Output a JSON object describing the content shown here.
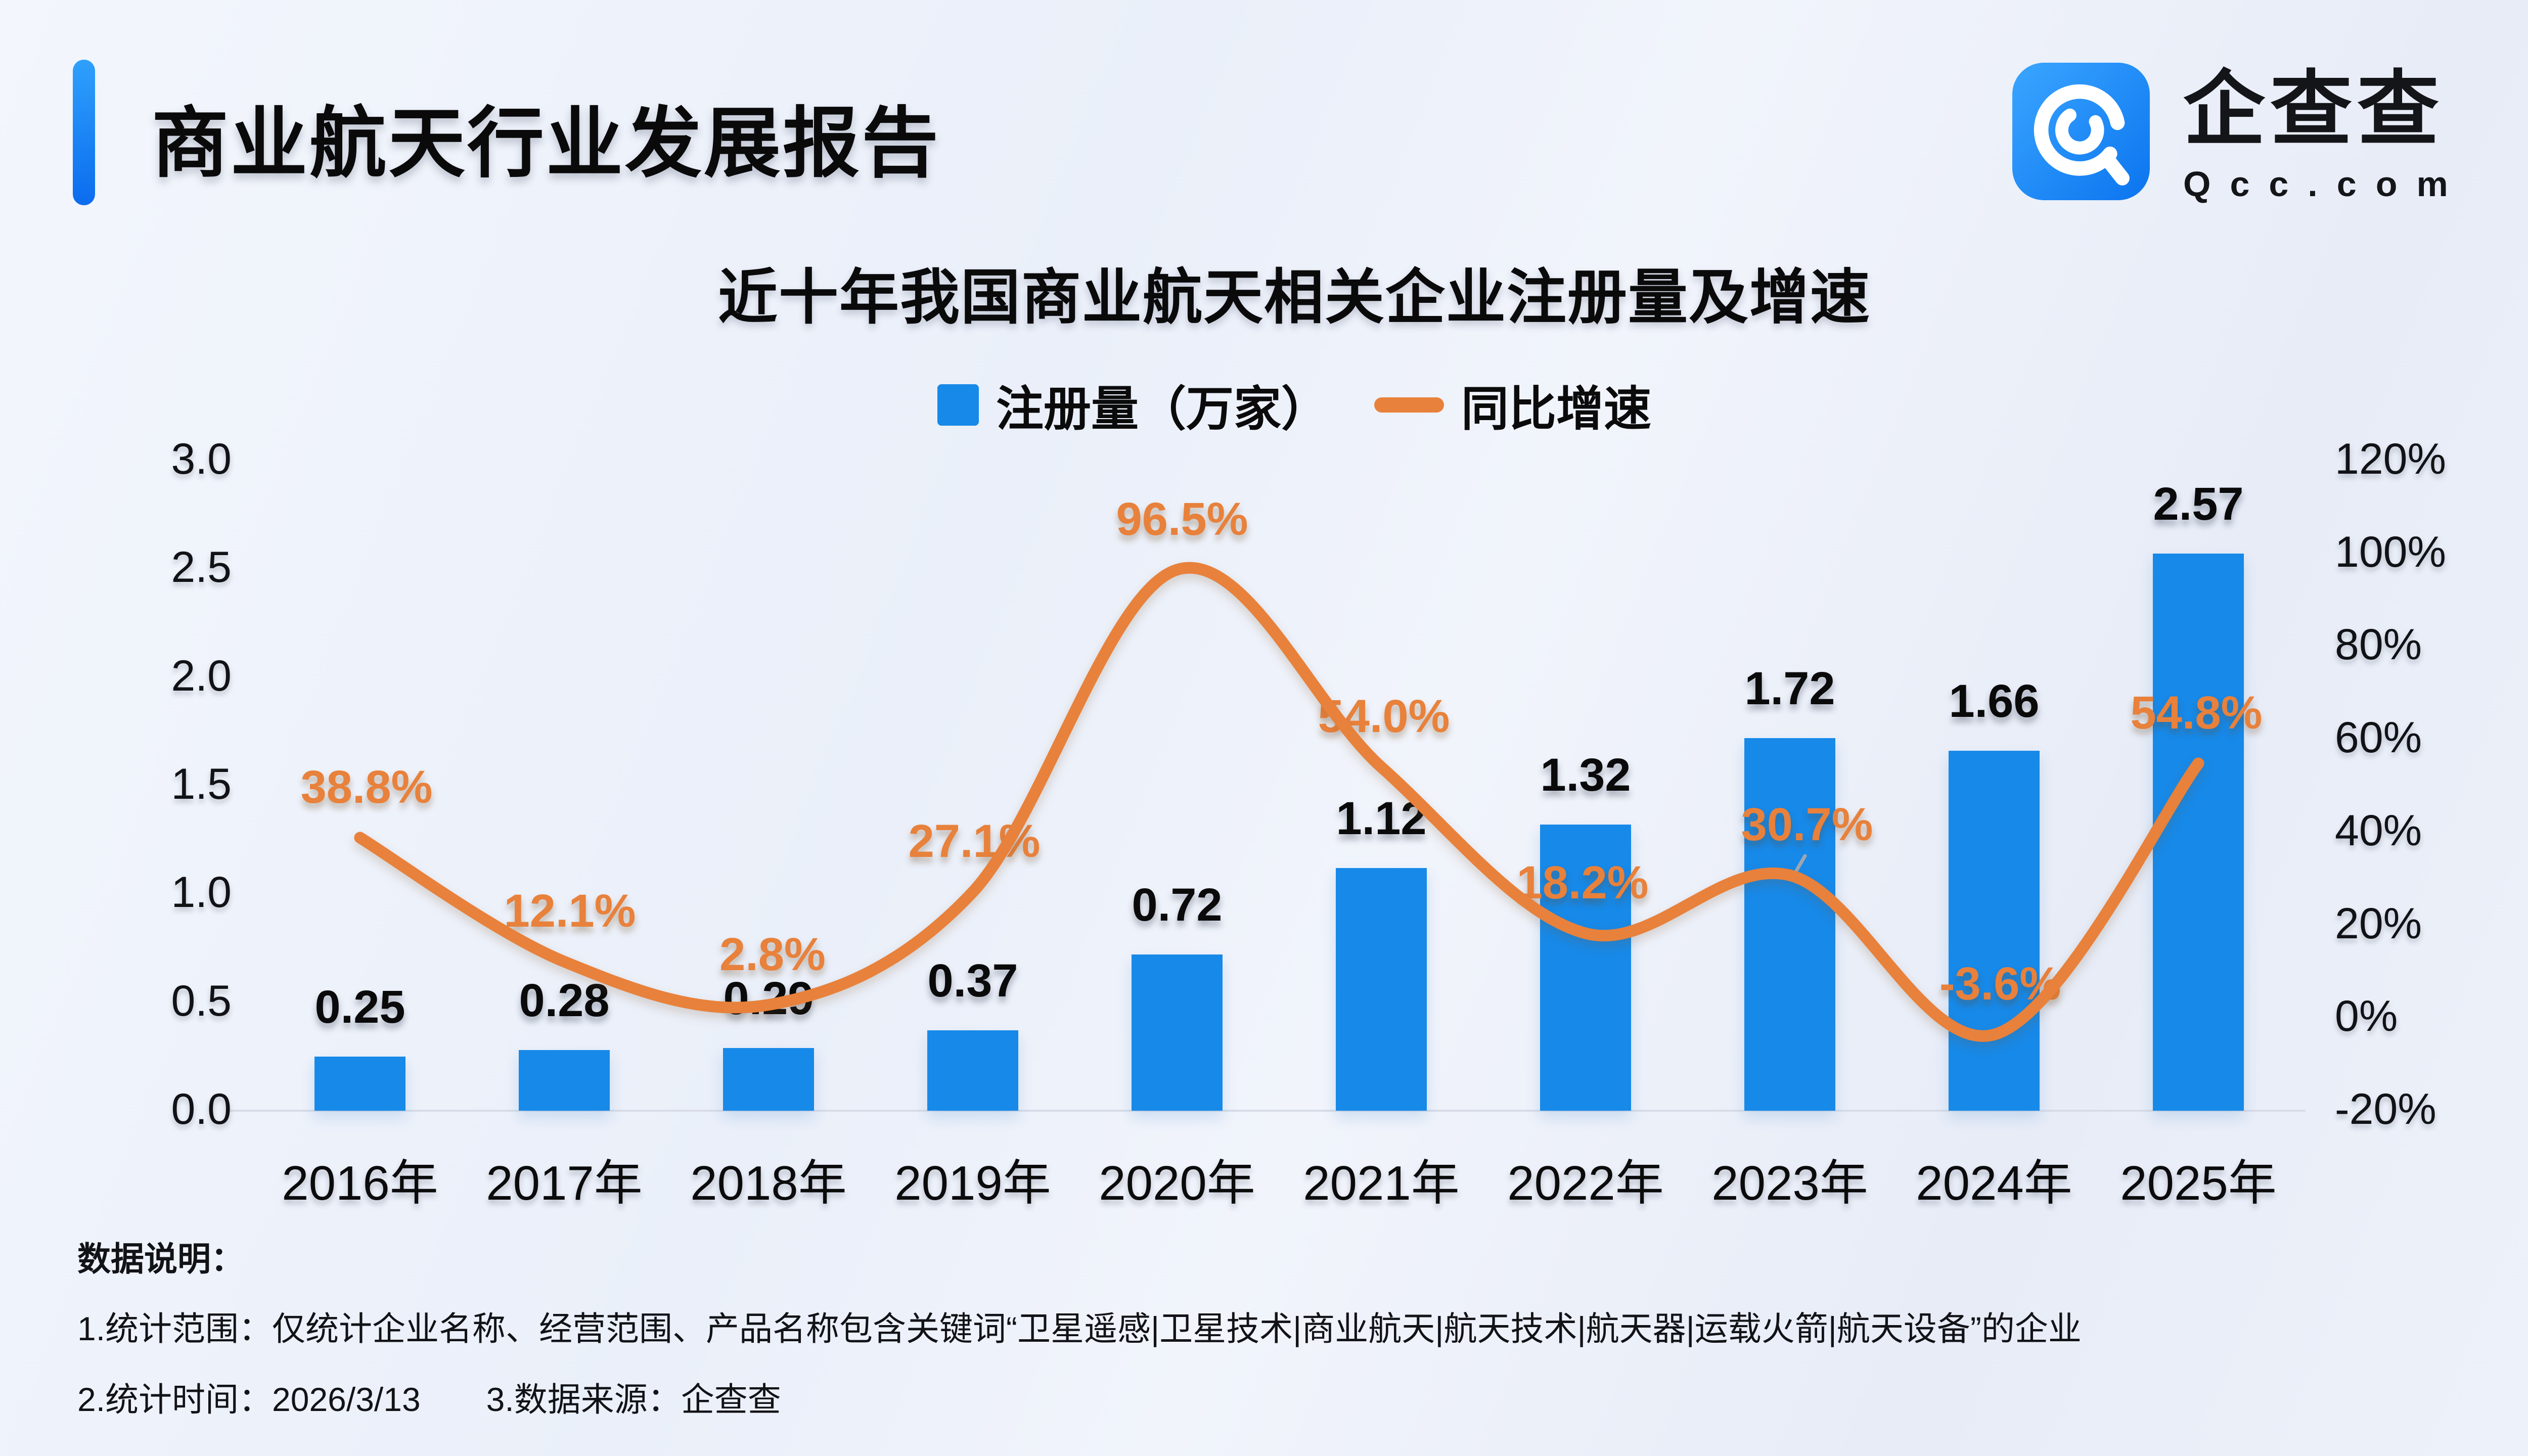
{
  "header": {
    "title": "商业航天行业发展报告",
    "logo": {
      "brand": "企查查",
      "domain": "Qcc.com"
    }
  },
  "chart": {
    "title": "近十年我国商业航天相关企业注册量及增速",
    "legend": {
      "bar_label": "注册量（万家）",
      "line_label": "同比增速"
    }
  },
  "chart_data": {
    "type": "bar+line",
    "title": "近十年我国商业航天相关企业注册量及增速",
    "categories": [
      "2016年",
      "2017年",
      "2018年",
      "2019年",
      "2020年",
      "2021年",
      "2022年",
      "2023年",
      "2024年",
      "2025年"
    ],
    "series": [
      {
        "name": "注册量（万家）",
        "type": "bar",
        "axis": "left",
        "color": "#1789E8",
        "values": [
          0.25,
          0.28,
          0.29,
          0.37,
          0.72,
          1.12,
          1.32,
          1.72,
          1.66,
          2.57
        ],
        "labels": [
          "0.25",
          "0.28",
          "0.29",
          "0.37",
          "0.72",
          "1.12",
          "1.32",
          "1.72",
          "1.66",
          "2.57"
        ]
      },
      {
        "name": "同比增速",
        "type": "line",
        "axis": "right",
        "color": "#E8813B",
        "unit": "%",
        "values": [
          38.8,
          12.1,
          2.8,
          27.1,
          96.5,
          54.0,
          18.2,
          30.7,
          -3.6,
          54.8
        ],
        "labels": [
          "38.8%",
          "12.1%",
          "2.8%",
          "27.1%",
          "96.5%",
          "54.0%",
          "18.2%",
          "30.7%",
          "-3.6%",
          "54.8%"
        ]
      }
    ],
    "left_axis": {
      "min": 0,
      "max": 3,
      "ticks": [
        "3.0",
        "2.5",
        "2.0",
        "1.5",
        "1.0",
        "0.5",
        "0.0"
      ]
    },
    "right_axis": {
      "min": -20,
      "max": 120,
      "ticks": [
        "120%",
        "100%",
        "80%",
        "60%",
        "40%",
        "20%",
        "0%",
        "-20%"
      ]
    },
    "grid": "off",
    "legend_position": "top"
  },
  "footer": {
    "heading": "数据说明：",
    "line1": "1.统计范围：仅统计企业名称、经营范围、产品名称包含关键词“卫星遥感|卫星技术|商业航天|航天技术|航天器|运载火箭|航天设备”的企业",
    "line2a": "2.统计时间：2026/3/13",
    "line2b": "3.数据来源：企查查"
  },
  "colors": {
    "bar": "#1789E8",
    "line": "#E8813B",
    "accent": "#0F7BF2",
    "axis_line": "#D8DCE7",
    "leader_line": "#9FA6B2",
    "text": "#0B0B0C",
    "background": "#EEF2FA"
  }
}
